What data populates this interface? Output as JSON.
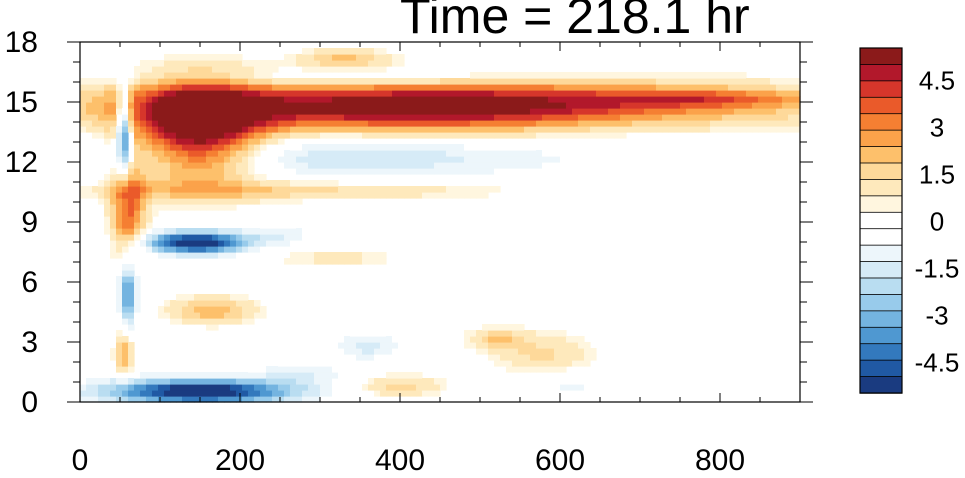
{
  "chart_data": {
    "type": "heatmap",
    "title": "Time = 218.1 hr",
    "xlabel": "",
    "ylabel": "",
    "xlim": [
      0,
      900
    ],
    "ylim": [
      0,
      18
    ],
    "x_ticks": [
      0,
      200,
      400,
      600,
      800
    ],
    "y_ticks": [
      0,
      3,
      6,
      9,
      12,
      15,
      18
    ],
    "grid": false,
    "legend": "right colorbar",
    "colorbar": {
      "levels": [
        -5.5,
        -5,
        -4.5,
        -4,
        -3.5,
        -3,
        -2.5,
        -2,
        -1.5,
        -1,
        -0.5,
        0,
        0.5,
        1,
        1.5,
        2,
        2.5,
        3,
        3.5,
        4,
        4.5,
        5,
        5.5
      ],
      "labels": [
        4.5,
        3,
        1.5,
        0,
        -1.5,
        -3,
        -4.5
      ],
      "colors": [
        "#8b1a1a",
        "#b2182b",
        "#d6362b",
        "#ea5a2a",
        "#f57f32",
        "#fba24a",
        "#fdc06b",
        "#fed99a",
        "#fee9bc",
        "#fff6df",
        "#ffffff",
        "#ffffff",
        "#edf6fb",
        "#d6ebf7",
        "#b9ddf1",
        "#98cbeb",
        "#74b4e0",
        "#4f98d1",
        "#3379bd",
        "#2059a4",
        "#1a3b80"
      ]
    },
    "features": [
      {
        "x": 450,
        "y": 14.8,
        "sx": 280,
        "sy": 0.9,
        "v": 6.0
      },
      {
        "x": 150,
        "y": 13.5,
        "sx": 55,
        "sy": 1.8,
        "v": 5.5
      },
      {
        "x": 790,
        "y": 15.2,
        "sx": 90,
        "sy": 0.3,
        "v": 1.8
      },
      {
        "x": 330,
        "y": 12.3,
        "sx": 220,
        "sy": 0.8,
        "v": -1.8
      },
      {
        "x": 680,
        "y": 14.0,
        "sx": 120,
        "sy": 0.6,
        "v": -0.8
      },
      {
        "x": 350,
        "y": 16.2,
        "sx": 180,
        "sy": 0.3,
        "v": -1.3
      },
      {
        "x": 330,
        "y": 17.2,
        "sx": 40,
        "sy": 0.35,
        "v": 1.8
      },
      {
        "x": 260,
        "y": 10.6,
        "sx": 200,
        "sy": 0.35,
        "v": 1.6
      },
      {
        "x": 145,
        "y": 8.0,
        "sx": 45,
        "sy": 0.4,
        "v": -6.0
      },
      {
        "x": 165,
        "y": 4.6,
        "sx": 40,
        "sy": 0.5,
        "v": 2.2
      },
      {
        "x": 150,
        "y": 0.55,
        "sx": 85,
        "sy": 0.45,
        "v": -6.0
      },
      {
        "x": 400,
        "y": 0.8,
        "sx": 40,
        "sy": 0.4,
        "v": 1.6
      },
      {
        "x": 580,
        "y": 2.4,
        "sx": 45,
        "sy": 0.8,
        "v": 1.4
      },
      {
        "x": 360,
        "y": 2.8,
        "sx": 30,
        "sy": 0.5,
        "v": -1.5
      },
      {
        "x": 280,
        "y": 1.5,
        "sx": 40,
        "sy": 0.4,
        "v": -1.2
      },
      {
        "x": 610,
        "y": 0.8,
        "sx": 40,
        "sy": 0.5,
        "v": -1.0
      },
      {
        "x": 520,
        "y": 3.2,
        "sx": 25,
        "sy": 0.4,
        "v": 1.6
      },
      {
        "x": 250,
        "y": 8.4,
        "sx": 30,
        "sy": 0.4,
        "v": -1.2
      },
      {
        "x": 320,
        "y": 7.2,
        "sx": 60,
        "sy": 0.3,
        "v": 1.0
      },
      {
        "x": 60,
        "y": 9.5,
        "sx": 15,
        "sy": 1.8,
        "v": 3.5
      },
      {
        "x": 55,
        "y": 13.5,
        "sx": 6,
        "sy": 1.5,
        "v": -5.0
      },
      {
        "x": 60,
        "y": 5.5,
        "sx": 8,
        "sy": 1.2,
        "v": -4.0
      },
      {
        "x": 55,
        "y": 2.5,
        "sx": 8,
        "sy": 0.8,
        "v": 2.5
      }
    ]
  },
  "page": {
    "title": "Time = 218.1 hr"
  }
}
